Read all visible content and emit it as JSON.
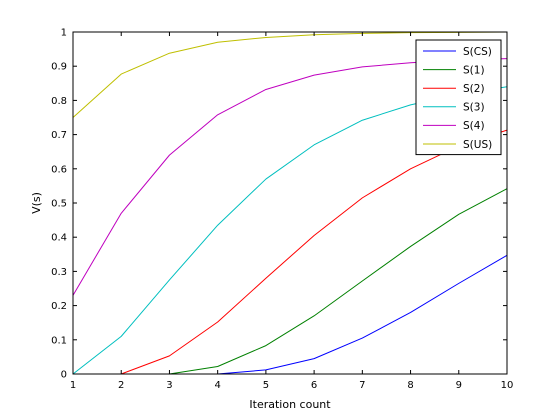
{
  "chart_data": {
    "type": "line",
    "title": "",
    "xlabel": "Iteration count",
    "ylabel": "V(s)",
    "xlim": [
      1,
      10
    ],
    "ylim": [
      0,
      1
    ],
    "xticks": [
      "1",
      "2",
      "3",
      "4",
      "5",
      "6",
      "7",
      "8",
      "9",
      "10"
    ],
    "yticks": [
      "0",
      "0.1",
      "0.2",
      "0.3",
      "0.4",
      "0.5",
      "0.6",
      "0.7",
      "0.8",
      "0.9",
      "1"
    ],
    "grid": false,
    "legend_position": "top-right",
    "series": [
      {
        "name": "S(CS)",
        "color": "#0000ff",
        "x": [
          4,
          5,
          6,
          7,
          8,
          9,
          10
        ],
        "values": [
          0.0,
          0.012,
          0.045,
          0.105,
          0.18,
          0.265,
          0.347
        ]
      },
      {
        "name": "S(1)",
        "color": "#008000",
        "x": [
          3,
          4,
          5,
          6,
          7,
          8,
          9,
          10
        ],
        "values": [
          0.0,
          0.022,
          0.083,
          0.17,
          0.272,
          0.373,
          0.467,
          0.542
        ]
      },
      {
        "name": "S(2)",
        "color": "#ff0000",
        "x": [
          2,
          3,
          4,
          5,
          6,
          7,
          8,
          9,
          10
        ],
        "values": [
          0.0,
          0.053,
          0.152,
          0.28,
          0.405,
          0.515,
          0.6,
          0.667,
          0.713
        ]
      },
      {
        "name": "S(3)",
        "color": "#00bfbf",
        "x": [
          1,
          2,
          3,
          4,
          5,
          6,
          7,
          8,
          9,
          10
        ],
        "values": [
          0.0,
          0.11,
          0.275,
          0.435,
          0.57,
          0.67,
          0.742,
          0.787,
          0.818,
          0.84
        ]
      },
      {
        "name": "S(4)",
        "color": "#bf00bf",
        "x": [
          1,
          2,
          3,
          4,
          5,
          6,
          7,
          8,
          9,
          10
        ],
        "values": [
          0.23,
          0.47,
          0.64,
          0.758,
          0.832,
          0.874,
          0.898,
          0.91,
          0.918,
          0.922
        ]
      },
      {
        "name": "S(US)",
        "color": "#bfbf00",
        "x": [
          1,
          2,
          3,
          4,
          5,
          6,
          7,
          8,
          9,
          10
        ],
        "values": [
          0.75,
          0.877,
          0.938,
          0.97,
          0.984,
          0.992,
          0.996,
          0.998,
          0.999,
          1.0
        ]
      }
    ]
  }
}
